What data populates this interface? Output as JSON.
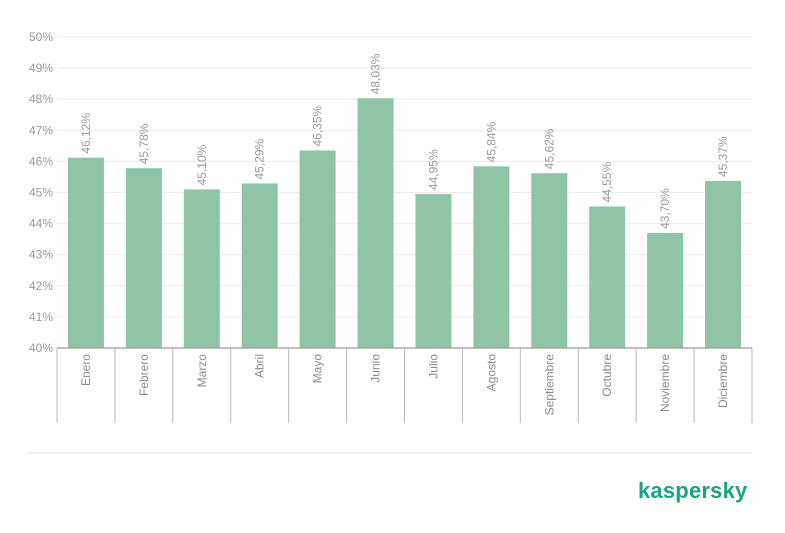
{
  "chart_data": {
    "type": "bar",
    "categories": [
      "Enero",
      "Febrero",
      "Marzo",
      "Abril",
      "Mayo",
      "Junio",
      "Julio",
      "Agosto",
      "Septiembre",
      "Octubre",
      "Noviembre",
      "Diciembre"
    ],
    "values": [
      46.12,
      45.78,
      45.1,
      45.29,
      46.35,
      48.03,
      44.95,
      45.84,
      45.62,
      44.55,
      43.7,
      45.37
    ],
    "data_labels": [
      "46,12%",
      "45,78%",
      "45,10%",
      "45,29%",
      "46,35%",
      "48,03%",
      "44,95%",
      "45,84%",
      "45,62%",
      "44,55%",
      "43,70%",
      "45,37%"
    ],
    "y_ticks": [
      "40%",
      "41%",
      "42%",
      "43%",
      "44%",
      "45%",
      "46%",
      "47%",
      "48%",
      "49%",
      "50%"
    ],
    "ylim": [
      40,
      50
    ],
    "grid": true,
    "bar_color": "#8fc4a7"
  },
  "brand": {
    "name": "kaspersky",
    "color": "#1aa383"
  }
}
